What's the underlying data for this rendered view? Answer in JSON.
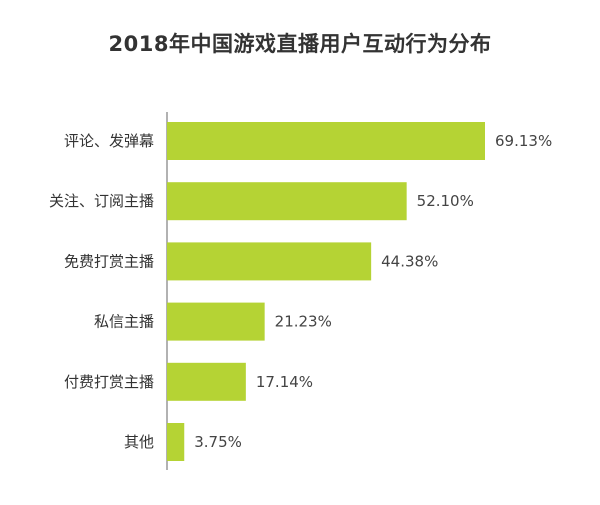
{
  "chart_data": {
    "type": "bar",
    "orientation": "horizontal",
    "title": "2018年中国游戏直播用户互动行为分布",
    "categories": [
      "评论、发弹幕",
      "关注、订阅主播",
      "免费打赏主播",
      "私信主播",
      "付费打赏主播",
      "其他"
    ],
    "values": [
      69.13,
      52.1,
      44.38,
      21.23,
      17.14,
      3.75
    ],
    "value_labels": [
      "69.13%",
      "52.10%",
      "44.38%",
      "21.23%",
      "17.14%",
      "3.75%"
    ],
    "unit": "%",
    "xlim": [
      0,
      100
    ],
    "grid": false,
    "legend": "none",
    "bar_color": "#b5d334",
    "axis_color": "#999999"
  }
}
